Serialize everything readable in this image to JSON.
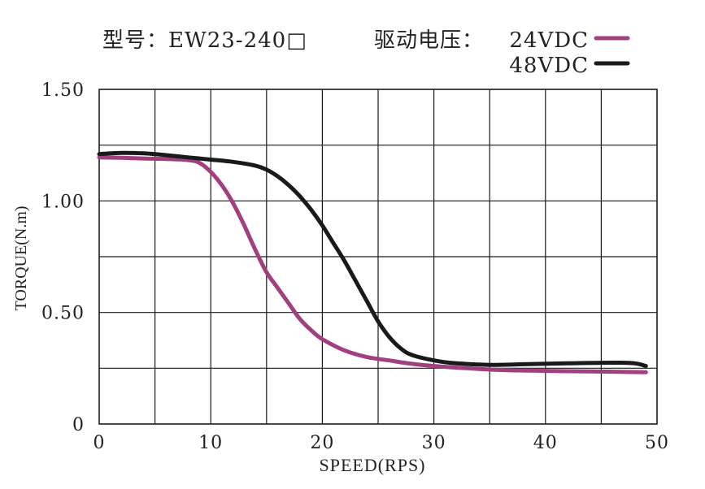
{
  "chart_data": {
    "type": "line",
    "title": "型号：EW23-240□",
    "legend_label": "驱动电压：",
    "xlabel": "SPEED(RPS)",
    "ylabel": "TORQUE(N.m)",
    "xlim": [
      0,
      50
    ],
    "ylim": [
      0,
      1.5
    ],
    "xticks": [
      0,
      10,
      20,
      30,
      40,
      50
    ],
    "xtick_labels": [
      "0",
      "10",
      "20",
      "30",
      "40",
      "50"
    ],
    "ytick_labels": [
      {
        "value": 0,
        "label": "0"
      },
      {
        "value": 0.5,
        "label": "0.50"
      },
      {
        "value": 1.0,
        "label": "1.00"
      },
      {
        "value": 1.5,
        "label": "1.50"
      }
    ],
    "grid": true,
    "legend_position": "top-right",
    "series": [
      {
        "name": "24VDC",
        "color": "#a0407f",
        "x": [
          0,
          2,
          4,
          6,
          8,
          9,
          10,
          11,
          12,
          13,
          14,
          15,
          16,
          17,
          18,
          19,
          20,
          22,
          24,
          26,
          28,
          30,
          33,
          36,
          40,
          44,
          49
        ],
        "y": [
          1.195,
          1.193,
          1.19,
          1.188,
          1.183,
          1.17,
          1.13,
          1.07,
          0.99,
          0.89,
          0.78,
          0.68,
          0.61,
          0.54,
          0.47,
          0.42,
          0.38,
          0.33,
          0.3,
          0.285,
          0.27,
          0.26,
          0.25,
          0.242,
          0.238,
          0.236,
          0.232
        ]
      },
      {
        "name": "48VDC",
        "color": "#1a1a1a",
        "x": [
          0,
          2,
          4,
          6,
          8,
          10,
          12,
          14,
          15,
          16,
          17,
          18,
          19,
          20,
          21,
          22,
          23,
          24,
          25,
          26,
          27,
          28,
          30,
          32,
          35,
          38,
          42,
          46,
          48,
          49
        ],
        "y": [
          1.21,
          1.215,
          1.213,
          1.205,
          1.195,
          1.185,
          1.175,
          1.158,
          1.14,
          1.11,
          1.07,
          1.02,
          0.96,
          0.89,
          0.81,
          0.73,
          0.64,
          0.55,
          0.46,
          0.39,
          0.34,
          0.31,
          0.285,
          0.272,
          0.265,
          0.268,
          0.272,
          0.275,
          0.272,
          0.26
        ]
      }
    ]
  }
}
